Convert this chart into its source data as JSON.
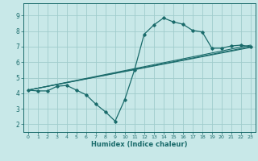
{
  "xlabel": "Humidex (Indice chaleur)",
  "xlim": [
    -0.5,
    23.5
  ],
  "ylim": [
    1.5,
    9.8
  ],
  "xticks": [
    0,
    1,
    2,
    3,
    4,
    5,
    6,
    7,
    8,
    9,
    10,
    11,
    12,
    13,
    14,
    15,
    16,
    17,
    18,
    19,
    20,
    21,
    22,
    23
  ],
  "yticks": [
    2,
    3,
    4,
    5,
    6,
    7,
    8,
    9
  ],
  "bg_color": "#c8e8e8",
  "grid_color": "#a0cccc",
  "line_color": "#1a6b6b",
  "series": [
    {
      "x": [
        0,
        1,
        2,
        3,
        4,
        5,
        6,
        7,
        8,
        9,
        10,
        11,
        12,
        13,
        14,
        15,
        16,
        17,
        18,
        19,
        20,
        21,
        22,
        23
      ],
      "y": [
        4.2,
        4.15,
        4.15,
        4.45,
        4.5,
        4.2,
        3.9,
        3.3,
        2.8,
        2.2,
        3.6,
        5.5,
        7.8,
        8.4,
        8.85,
        8.6,
        8.45,
        8.05,
        7.95,
        6.9,
        6.9,
        7.05,
        7.1,
        7.0
      ]
    },
    {
      "comment": "straight line 1: from x=0,y=4.2 to x=23,y=7.1",
      "x": [
        0,
        23
      ],
      "y": [
        4.2,
        7.1
      ]
    },
    {
      "comment": "straight line 2: from x=0,y=4.2 to x=23,y=7.0",
      "x": [
        0,
        23
      ],
      "y": [
        4.2,
        7.0
      ]
    },
    {
      "x": [
        0,
        23
      ],
      "y": [
        4.2,
        6.95
      ]
    }
  ]
}
